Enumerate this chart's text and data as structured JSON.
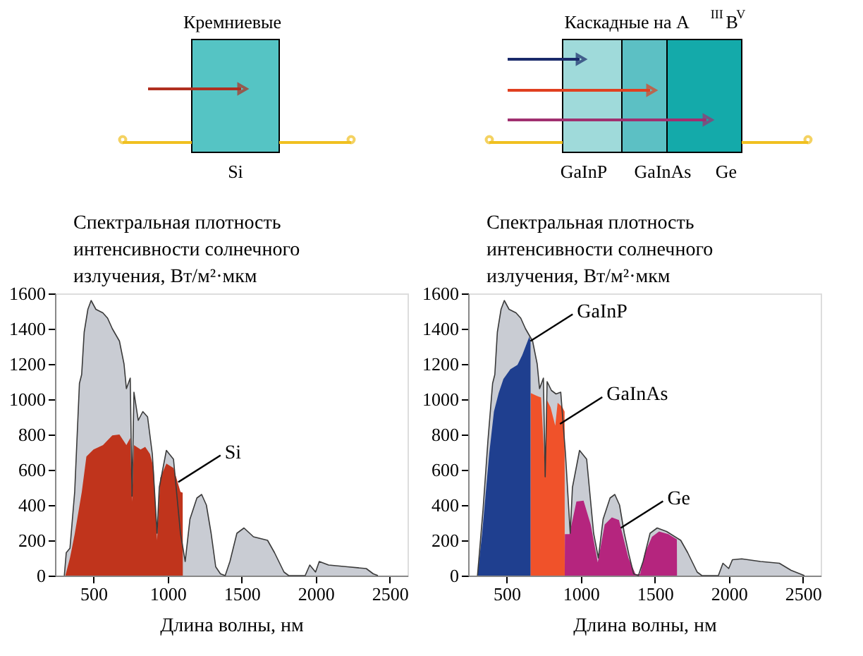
{
  "chart_data": [
    {
      "type": "area",
      "xlabel": "Длина волны, нм",
      "ylabel": "Спектральная плотность интенсивности солнечного излучения, Вт/м²·мкм",
      "xlim": [
        240,
        2620
      ],
      "ylim": [
        0,
        1600
      ],
      "xticks": [
        500,
        1000,
        1500,
        2000,
        2500
      ],
      "yticks": [
        0,
        200,
        400,
        600,
        800,
        1000,
        1200,
        1400,
        1600
      ],
      "grid": false,
      "annotations": [
        "Кремниевые",
        "Si",
        {
          "text": "Si",
          "x": 1072,
          "y": 530
        }
      ],
      "series": [
        {
          "color": "#c9ccd3",
          "x": [
            303,
            316,
            341,
            373,
            405,
            420,
            437,
            462,
            484,
            516,
            563,
            595,
            627,
            675,
            706,
            722,
            748,
            760,
            773,
            802,
            833,
            865,
            897,
            929,
            944,
            992,
            1040,
            1087,
            1119,
            1151,
            1198,
            1230,
            1262,
            1294,
            1325,
            1357,
            1389,
            1421,
            1468,
            1516,
            1580,
            1675,
            1722,
            1786,
            1818,
            1929,
            1960,
            1999,
            2024,
            2087,
            2214,
            2341,
            2389,
            2420
          ],
          "values": [
            0,
            130,
            155,
            475,
            1090,
            1140,
            1380,
            1510,
            1560,
            1510,
            1490,
            1460,
            1400,
            1330,
            1200,
            1060,
            1120,
            450,
            1040,
            880,
            930,
            900,
            690,
            240,
            500,
            710,
            660,
            240,
            80,
            320,
            440,
            460,
            400,
            240,
            50,
            10,
            0,
            80,
            240,
            270,
            220,
            200,
            130,
            20,
            0,
            0,
            60,
            20,
            80,
            60,
            50,
            40,
            10,
            0
          ]
        },
        {
          "color": "#c0341c",
          "x": [
            310,
            341,
            373,
            421,
            452,
            500,
            564,
            627,
            675,
            722,
            748,
            760,
            773,
            818,
            849,
            881,
            906,
            929,
            951,
            992,
            1040,
            1087,
            1102,
            1103
          ],
          "values": [
            0,
            100,
            235,
            475,
            675,
            715,
            740,
            795,
            800,
            740,
            780,
            420,
            740,
            715,
            730,
            690,
            610,
            200,
            555,
            635,
            610,
            475,
            470,
            0
          ]
        }
      ]
    },
    {
      "type": "area",
      "xlabel": "Длина волны, нм",
      "ylabel": "Спектральная плотность интенсивности солнечного излучения, Вт/м²·мкм",
      "xlim": [
        240,
        2620
      ],
      "ylim": [
        0,
        1600
      ],
      "xticks": [
        500,
        1000,
        1500,
        2000,
        2500
      ],
      "yticks": [
        0,
        200,
        400,
        600,
        800,
        1000,
        1200,
        1400,
        1600
      ],
      "grid": false,
      "annotations": [
        "Каскадные на A$^{III}$B$^{V}$",
        "GaInP",
        "GaInAs",
        "Ge",
        {
          "text": "GaInP",
          "x": 660,
          "y": 1330
        },
        {
          "text": "GaInAs",
          "x": 860,
          "y": 860
        },
        {
          "text": "Ge",
          "x": 1270,
          "y": 270
        }
      ],
      "series": [
        {
          "color": "#c9ccd3",
          "x": [
            303,
            316,
            341,
            373,
            405,
            420,
            437,
            462,
            484,
            516,
            563,
            595,
            627,
            675,
            706,
            722,
            748,
            760,
            773,
            802,
            833,
            865,
            897,
            929,
            944,
            992,
            1040,
            1087,
            1119,
            1151,
            1198,
            1230,
            1262,
            1294,
            1325,
            1357,
            1389,
            1421,
            1468,
            1516,
            1580,
            1675,
            1722,
            1786,
            1818,
            1929,
            1960,
            1999,
            2024,
            2087,
            2214,
            2341,
            2420,
            2510
          ],
          "values": [
            0,
            130,
            380,
            760,
            1090,
            1140,
            1380,
            1510,
            1560,
            1510,
            1490,
            1460,
            1400,
            1330,
            1200,
            1060,
            1120,
            560,
            1100,
            1050,
            1030,
            1040,
            690,
            240,
            500,
            710,
            660,
            240,
            100,
            320,
            440,
            460,
            400,
            240,
            120,
            10,
            0,
            80,
            240,
            270,
            250,
            200,
            130,
            20,
            0,
            0,
            70,
            40,
            90,
            95,
            80,
            70,
            30,
            0
          ]
        },
        {
          "color": "#1f3f8f",
          "x": [
            303,
            334,
            382,
            414,
            446,
            478,
            525,
            573,
            605,
            653,
            661,
            662
          ],
          "values": [
            0,
            235,
            690,
            930,
            1035,
            1115,
            1170,
            1195,
            1250,
            1355,
            1330,
            0
          ]
        },
        {
          "color": "#f0522a",
          "x": [
            662,
            663,
            701,
            732,
            760,
            772,
            796,
            828,
            844,
            876,
            891,
            892
          ],
          "values": [
            0,
            1035,
            1020,
            1010,
            580,
            995,
            955,
            850,
            980,
            955,
            930,
            0
          ]
        },
        {
          "color": "#b5257e",
          "x": [
            892,
            893,
            924,
            971,
            1019,
            1067,
            1115,
            1162,
            1210,
            1258,
            1322,
            1370,
            1401,
            1433,
            1481,
            1529,
            1592,
            1640,
            1649,
            1650
          ],
          "values": [
            0,
            235,
            235,
            420,
            425,
            290,
            75,
            290,
            330,
            315,
            100,
            8,
            8,
            128,
            220,
            250,
            235,
            210,
            205,
            0
          ]
        }
      ]
    }
  ]
}
